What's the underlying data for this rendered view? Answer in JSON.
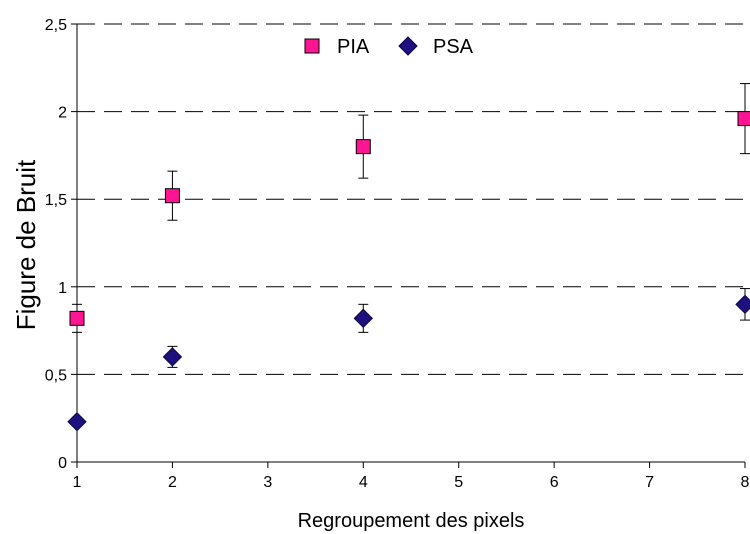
{
  "chart_data": {
    "type": "scatter",
    "title": "",
    "xlabel": "Regroupement des pixels",
    "ylabel": "Figure de Bruit",
    "xlim": [
      1,
      8
    ],
    "ylim": [
      0,
      2.5
    ],
    "xticks": [
      "1",
      "2",
      "3",
      "4",
      "5",
      "6",
      "7",
      "8"
    ],
    "yticks": [
      "0",
      "0,5",
      "1",
      "1,5",
      "2",
      "2,5"
    ],
    "grid": "horizontal dashed",
    "legend_position": "top-center",
    "series": [
      {
        "name": "PIA",
        "color": "#ff1493",
        "marker": "square",
        "x": [
          1,
          2,
          4,
          8
        ],
        "y": [
          0.82,
          1.52,
          1.8,
          1.96
        ],
        "err": [
          0.08,
          0.14,
          0.18,
          0.2
        ]
      },
      {
        "name": "PSA",
        "color": "#1f1080",
        "marker": "diamond",
        "x": [
          1,
          2,
          4,
          8
        ],
        "y": [
          0.23,
          0.6,
          0.82,
          0.9
        ],
        "err": [
          0.0,
          0.06,
          0.08,
          0.09
        ]
      }
    ]
  }
}
